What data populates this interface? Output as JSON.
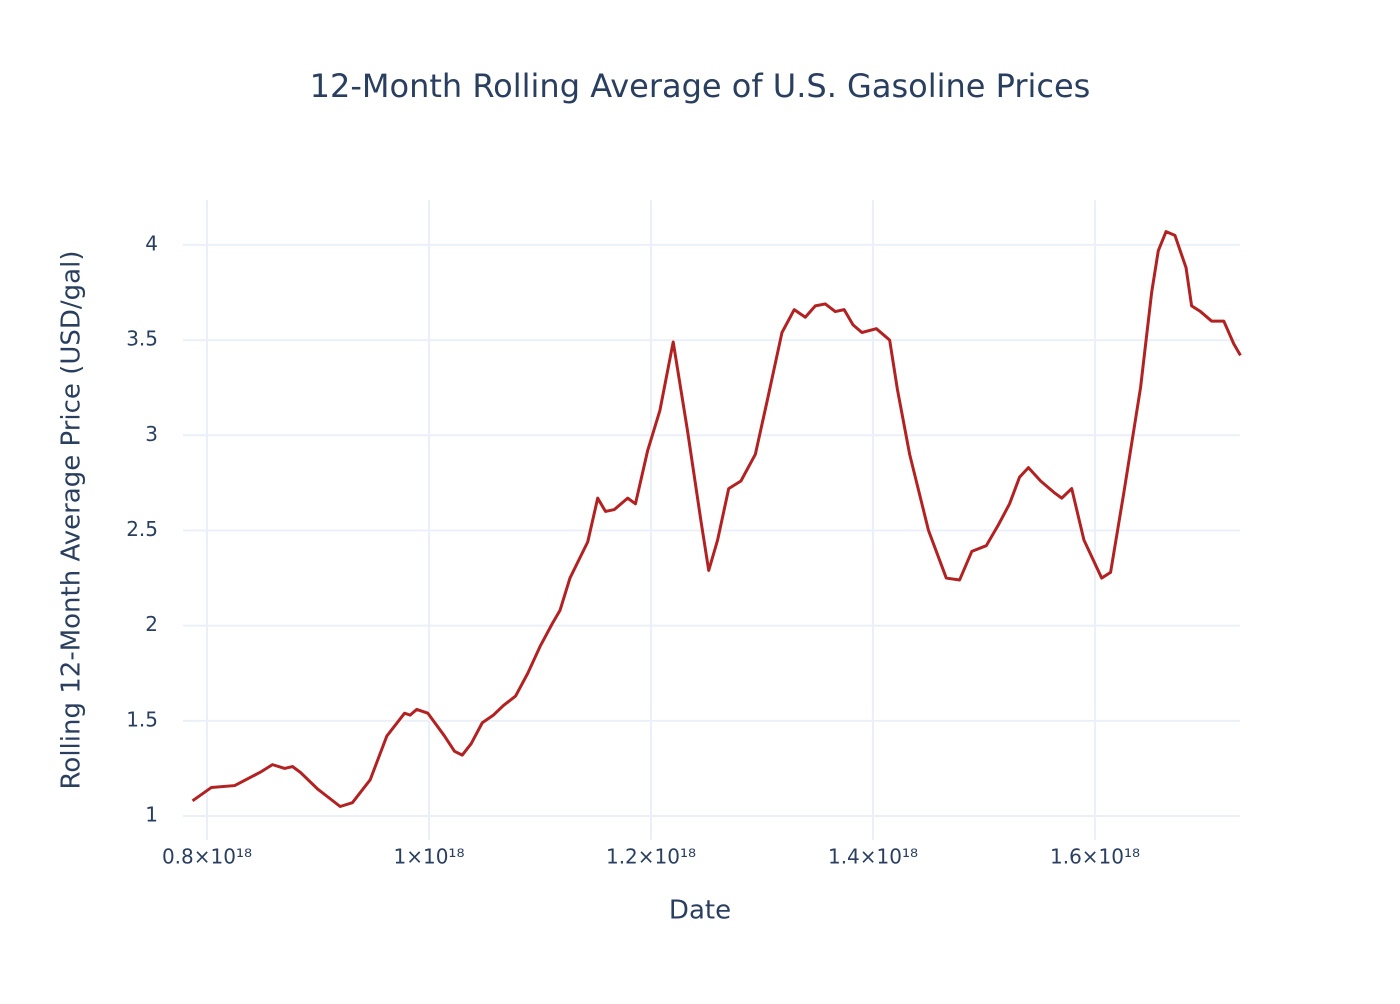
{
  "chart_data": {
    "type": "line",
    "title": "12-Month Rolling Average of U.S. Gasoline Prices",
    "x_label": "Date",
    "y_label": "Rolling 12-Month Average Price (USD/gal)",
    "color": "#b22222",
    "grid": true,
    "xlim": [
      7.784e+17,
      1.7306e+18
    ],
    "ylim": [
      0.874,
      4.236
    ],
    "xticks": [
      {
        "value": 8e+17,
        "label": "0.8×10¹⁸"
      },
      {
        "value": 1e+18,
        "label": "1×10¹⁸"
      },
      {
        "value": 1.2e+18,
        "label": "1.2×10¹⁸"
      },
      {
        "value": 1.4e+18,
        "label": "1.4×10¹⁸"
      },
      {
        "value": 1.6e+18,
        "label": "1.6×10¹⁸"
      }
    ],
    "yticks": [
      1,
      1.5,
      2,
      2.5,
      3,
      3.5,
      4
    ],
    "x": [
      7.87e+17,
      8.04e+17,
      8.25e+17,
      8.48e+17,
      8.59e+17,
      8.7e+17,
      8.77e+17,
      8.84e+17,
      9e+17,
      9.2e+17,
      9.31e+17,
      9.47e+17,
      9.62e+17,
      9.78e+17,
      9.83e+17,
      9.89e+17,
      9.99e+17,
      1.014e+18,
      1.023e+18,
      1.03e+18,
      1.038e+18,
      1.048e+18,
      1.058e+18,
      1.067e+18,
      1.078e+18,
      1.089e+18,
      1.1e+18,
      1.111e+18,
      1.118e+18,
      1.127e+18,
      1.143e+18,
      1.152e+18,
      1.159e+18,
      1.167e+18,
      1.179e+18,
      1.186e+18,
      1.197e+18,
      1.208e+18,
      1.22e+18,
      1.233e+18,
      1.245e+18,
      1.252e+18,
      1.26e+18,
      1.27e+18,
      1.281e+18,
      1.294e+18,
      1.305e+18,
      1.318e+18,
      1.329e+18,
      1.339e+18,
      1.348e+18,
      1.357e+18,
      1.366e+18,
      1.374e+18,
      1.382e+18,
      1.39e+18,
      1.403e+18,
      1.415e+18,
      1.422e+18,
      1.433e+18,
      1.45e+18,
      1.466e+18,
      1.478e+18,
      1.489e+18,
      1.502e+18,
      1.513e+18,
      1.523e+18,
      1.532e+18,
      1.54e+18,
      1.551e+18,
      1.563e+18,
      1.57e+18,
      1.579e+18,
      1.59e+18,
      1.606e+18,
      1.614e+18,
      1.626e+18,
      1.641e+18,
      1.651e+18,
      1.657e+18,
      1.664e+18,
      1.672e+18,
      1.682e+18,
      1.687e+18,
      1.695e+18,
      1.705e+18,
      1.716e+18,
      1.725e+18,
      1.731e+18
    ],
    "values": [
      1.08,
      1.15,
      1.16,
      1.23,
      1.27,
      1.25,
      1.26,
      1.23,
      1.14,
      1.05,
      1.07,
      1.19,
      1.42,
      1.54,
      1.53,
      1.56,
      1.54,
      1.42,
      1.34,
      1.32,
      1.38,
      1.49,
      1.53,
      1.58,
      1.63,
      1.75,
      1.89,
      2.01,
      2.08,
      2.25,
      2.44,
      2.67,
      2.6,
      2.61,
      2.67,
      2.64,
      2.92,
      3.13,
      3.49,
      3.02,
      2.55,
      2.29,
      2.45,
      2.72,
      2.76,
      2.9,
      3.19,
      3.54,
      3.66,
      3.62,
      3.68,
      3.69,
      3.65,
      3.66,
      3.58,
      3.54,
      3.56,
      3.5,
      3.24,
      2.9,
      2.5,
      2.25,
      2.24,
      2.39,
      2.42,
      2.53,
      2.64,
      2.78,
      2.83,
      2.76,
      2.7,
      2.67,
      2.72,
      2.45,
      2.25,
      2.28,
      2.7,
      3.25,
      3.75,
      3.97,
      4.07,
      4.05,
      3.88,
      3.68,
      3.65,
      3.6,
      3.6,
      3.48,
      3.42
    ]
  }
}
